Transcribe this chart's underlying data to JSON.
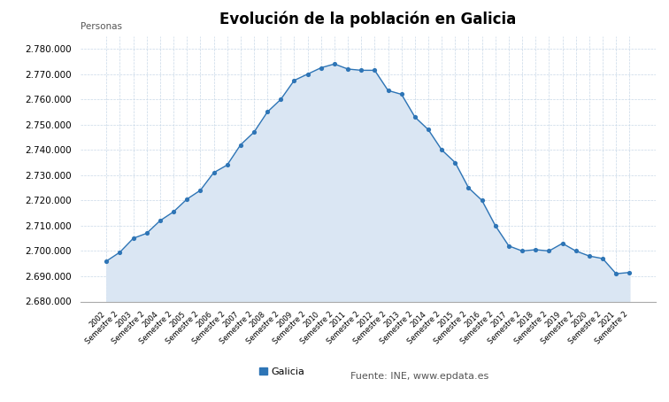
{
  "title": "Evolución de la población en Galicia",
  "ylabel": "Personas",
  "legend_label": "Galicia",
  "source_label": "Fuente: INE, www.epdata.es",
  "line_color": "#2e75b6",
  "fill_color": "#dae6f3",
  "marker_color": "#2e75b6",
  "background_color": "#ffffff",
  "grid_color": "#c8d8e8",
  "values": [
    2696000,
    2699500,
    2705000,
    2707000,
    2712000,
    2715500,
    2720500,
    2724000,
    2731000,
    2734000,
    2742000,
    2747000,
    2755000,
    2760000,
    2767500,
    2770000,
    2772500,
    2774000,
    2772000,
    2771500,
    2771500,
    2763500,
    2762000,
    2753000,
    2748000,
    2740000,
    2735000,
    2725000,
    2720000,
    2710000,
    2702000,
    2700000,
    2700500,
    2700000,
    2703000,
    2700000,
    2698000,
    2697000,
    2691000,
    2691500
  ],
  "ylim": [
    2680000,
    2785000
  ],
  "yticks": [
    2680000,
    2690000,
    2700000,
    2710000,
    2720000,
    2730000,
    2740000,
    2750000,
    2760000,
    2770000,
    2780000
  ]
}
